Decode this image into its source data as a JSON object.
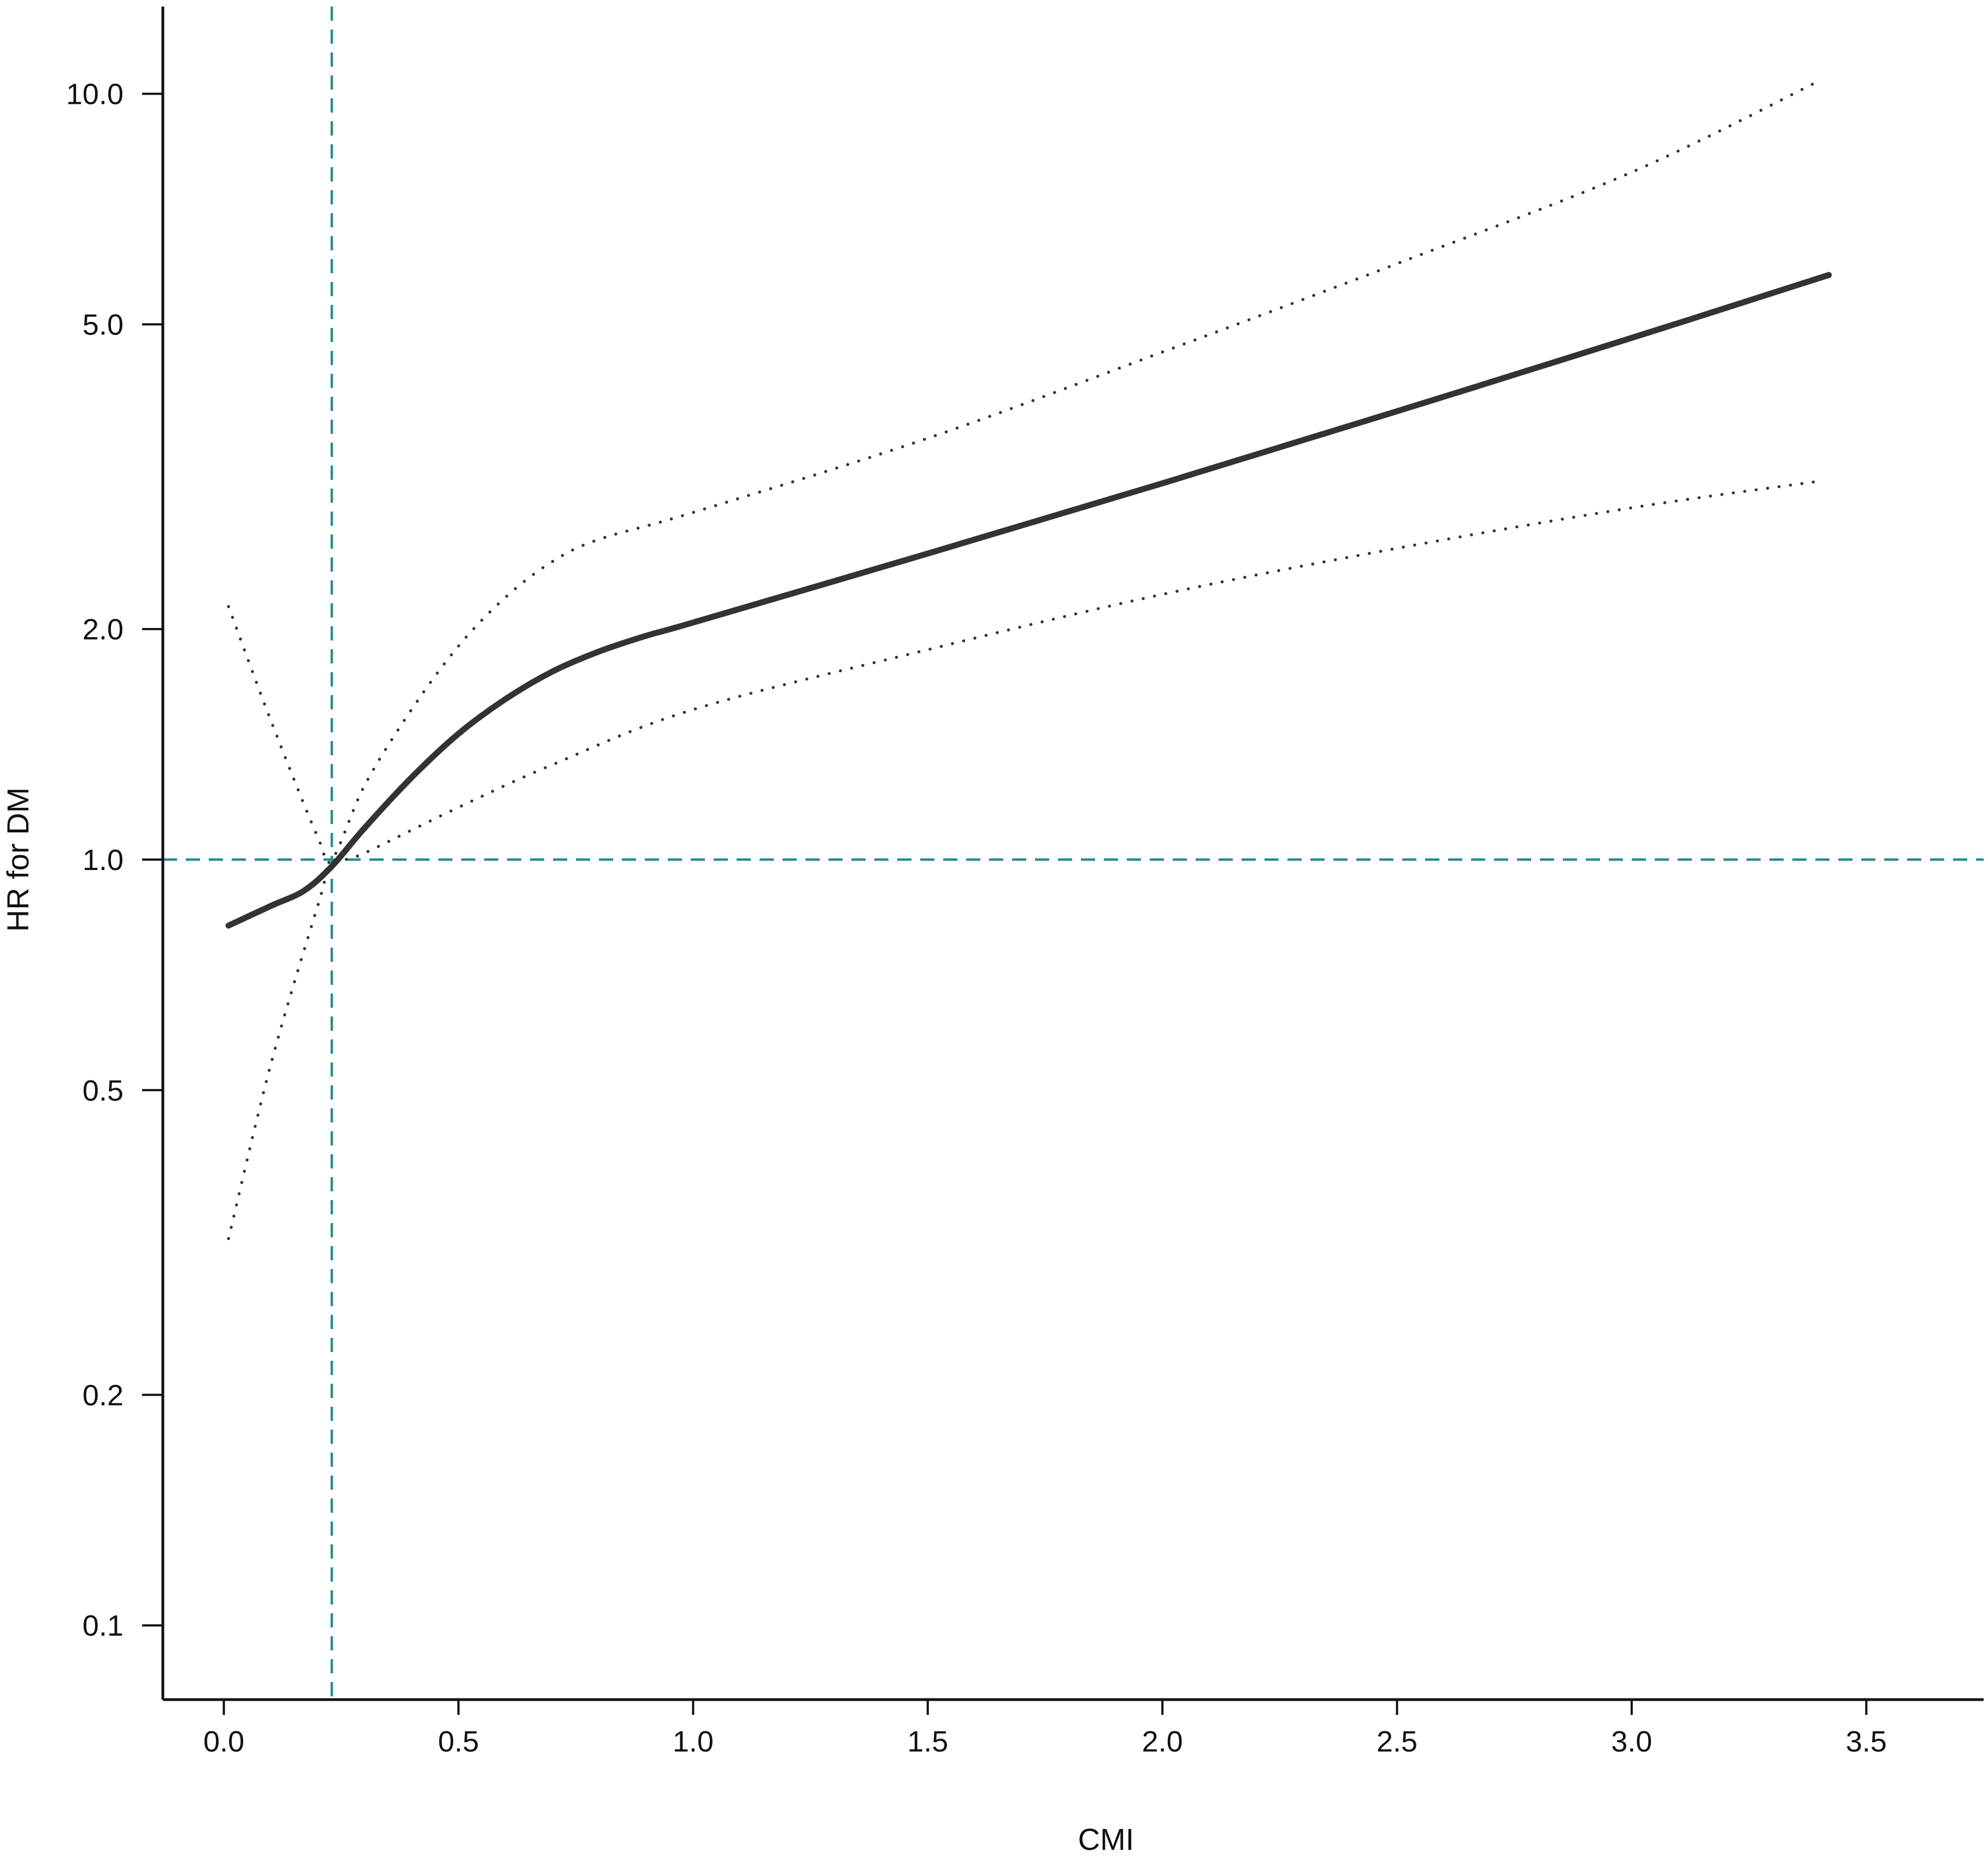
{
  "chart_data": {
    "type": "line",
    "xlabel": "CMI",
    "ylabel": "HR for DM",
    "x_scale": "linear",
    "y_scale": "log",
    "xlim": [
      -0.13,
      3.75
    ],
    "ylim": [
      0.08,
      13.0
    ],
    "x_ticks": [
      0.0,
      0.5,
      1.0,
      1.5,
      2.0,
      2.5,
      3.0,
      3.5
    ],
    "x_tick_labels": [
      "0.0",
      "0.5",
      "1.0",
      "1.5",
      "2.0",
      "2.5",
      "3.0",
      "3.5"
    ],
    "y_ticks": [
      0.1,
      0.2,
      0.5,
      1.0,
      2.0,
      5.0,
      10.0
    ],
    "y_tick_labels": [
      "0.1",
      "0.2",
      "0.5",
      "1.0",
      "2.0",
      "5.0",
      "10.0"
    ],
    "grid": false,
    "legend": "none",
    "reference_lines": [
      {
        "orientation": "horizontal",
        "value": 1.0,
        "style": "dashed",
        "color": "#2a8c8c"
      },
      {
        "orientation": "vertical",
        "value": 0.23,
        "style": "dashed",
        "color": "#2a8c8c"
      }
    ],
    "series": [
      {
        "role": "estimate",
        "style": "solid",
        "color": "#333333",
        "x": [
          0.01,
          0.1,
          0.17,
          0.23,
          0.3,
          0.4,
          0.5,
          0.6,
          0.7,
          0.8,
          0.9,
          1.0,
          1.5,
          2.0,
          2.5,
          3.0,
          3.42
        ],
        "y": [
          0.82,
          0.87,
          0.91,
          0.98,
          1.1,
          1.28,
          1.46,
          1.62,
          1.76,
          1.87,
          1.96,
          2.04,
          2.51,
          3.1,
          3.85,
          4.8,
          5.8
        ]
      },
      {
        "role": "upper_ci",
        "style": "dotted",
        "color": "#333333",
        "x": [
          0.01,
          0.1,
          0.2,
          0.23,
          0.3,
          0.4,
          0.5,
          0.6,
          0.7,
          0.8,
          1.0,
          1.5,
          2.0,
          2.5,
          3.0,
          3.4
        ],
        "y": [
          2.14,
          1.52,
          1.07,
          1.0,
          1.25,
          1.57,
          1.9,
          2.2,
          2.45,
          2.62,
          2.84,
          3.55,
          4.6,
          6.0,
          7.9,
          10.4
        ]
      },
      {
        "role": "lower_ci",
        "style": "dotted",
        "color": "#333333",
        "x": [
          0.01,
          0.1,
          0.2,
          0.23,
          0.3,
          0.5,
          0.7,
          1.0,
          1.5,
          2.0,
          2.5,
          3.0,
          3.4
        ],
        "y": [
          0.32,
          0.54,
          0.87,
          0.98,
          1.02,
          1.17,
          1.33,
          1.57,
          1.88,
          2.22,
          2.55,
          2.88,
          3.12
        ]
      }
    ]
  }
}
